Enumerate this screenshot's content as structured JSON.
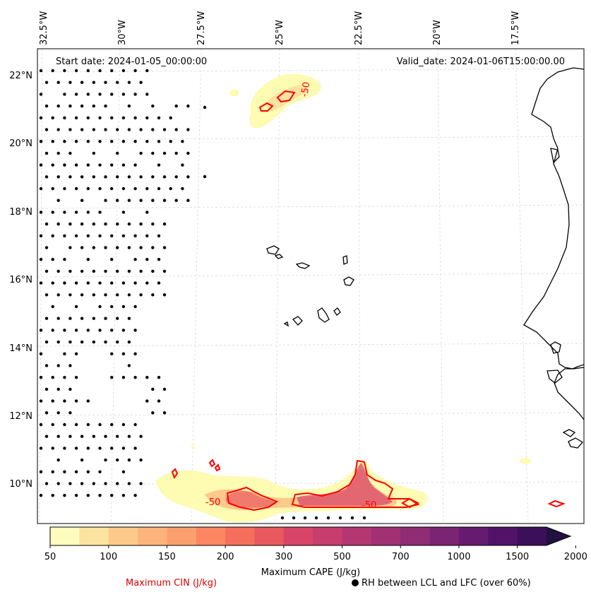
{
  "header": {
    "start_date": "Start date: 2024-01-05_00:00:00",
    "valid_date": "Valid_date: 2024-01-06T15:00:00.00"
  },
  "axes": {
    "lon_labels": [
      "32.5°W",
      "30°W",
      "27.5°W",
      "25°W",
      "22.5°W",
      "20°W",
      "17.5°W"
    ],
    "lat_labels": [
      "22°N",
      "20°N",
      "18°N",
      "16°N",
      "14°N",
      "12°N",
      "10°N"
    ]
  },
  "contours": {
    "cin_labels": [
      "-50",
      "-50",
      "-50"
    ]
  },
  "colorbar": {
    "ticks": [
      "50",
      "100",
      "150",
      "200",
      "300",
      "500",
      "700",
      "1000",
      "1500",
      "2000"
    ],
    "title": "Maximum CAPE (J/kg)",
    "colors": [
      "#fefdbf",
      "#fde3a0",
      "#fdca8b",
      "#fdb47c",
      "#fc9f6f",
      "#fb8661",
      "#f56f5c",
      "#e9585f",
      "#d94568",
      "#c73d6e",
      "#b43772",
      "#a13173",
      "#8e2c74",
      "#7a2473",
      "#661b70",
      "#511368",
      "#3c0f5a",
      "#211042"
    ]
  },
  "legend": {
    "cin_label": "Maximum CIN (J/kg)",
    "rh_label": "RH between LCL and LFC (over 60%)"
  },
  "colors": {
    "cin_contour": "#ff0000",
    "coast": "#000000",
    "grid": "#cccccc"
  }
}
